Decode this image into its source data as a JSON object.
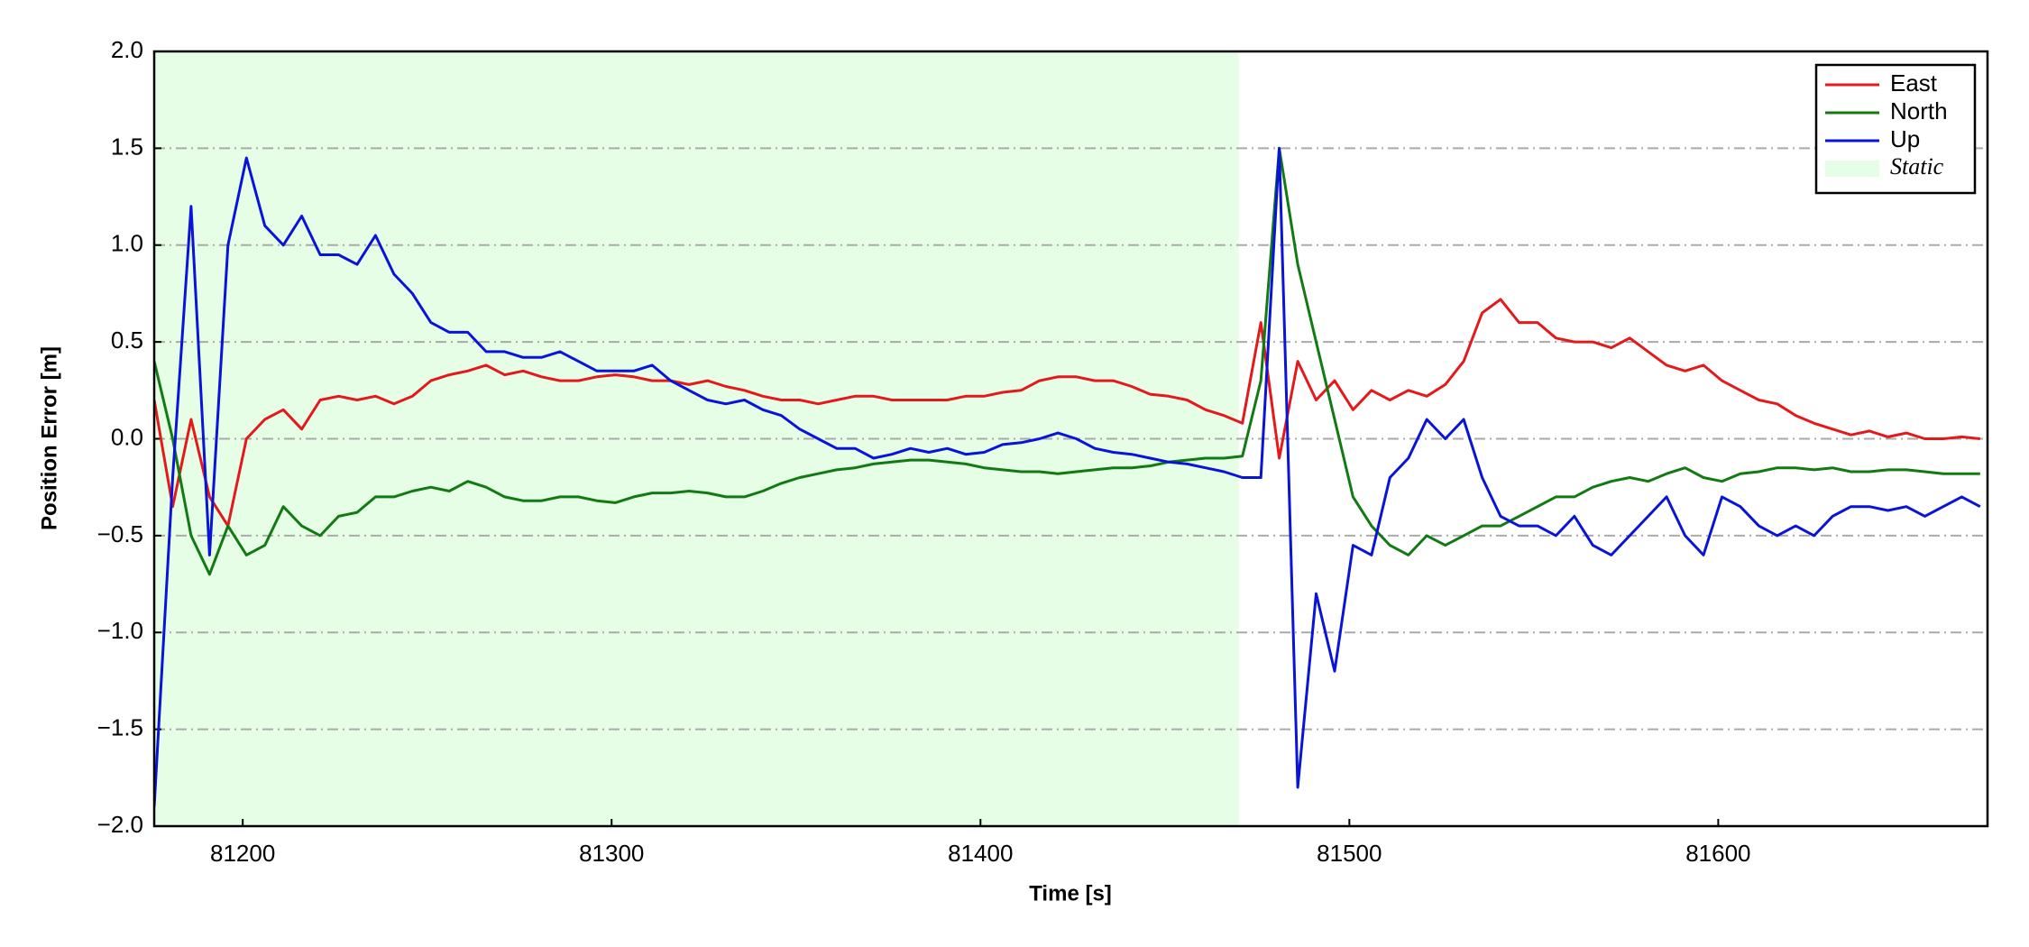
{
  "chart_data": {
    "type": "line",
    "x_label": "Time [s]",
    "y_label": "Position Error [m]",
    "xlim": [
      81176,
      81673
    ],
    "ylim": [
      -2,
      2
    ],
    "xticks": [
      81200,
      81300,
      81400,
      81500,
      81600
    ],
    "yticks": [
      {
        "value": -2,
        "label": "−2.0"
      },
      {
        "value": -1.5,
        "label": "−1.5"
      },
      {
        "value": -1,
        "label": "−1.0"
      },
      {
        "value": -0.5,
        "label": "−0.5"
      },
      {
        "value": 0,
        "label": "0.0"
      },
      {
        "value": 0.5,
        "label": "0.5"
      },
      {
        "value": 1,
        "label": "1.0"
      },
      {
        "value": 1.5,
        "label": "1.5"
      },
      {
        "value": 2,
        "label": "2.0"
      }
    ],
    "grid": true,
    "legend": "upper right",
    "shade": {
      "name": "Static",
      "color": "#e6fde6",
      "x": [
        81176,
        81470
      ]
    },
    "x": [
      81176,
      81181,
      81186,
      81191,
      81196,
      81201,
      81206,
      81211,
      81216,
      81221,
      81226,
      81231,
      81236,
      81241,
      81246,
      81251,
      81256,
      81261,
      81266,
      81271,
      81276,
      81281,
      81286,
      81291,
      81296,
      81301,
      81306,
      81311,
      81316,
      81321,
      81326,
      81331,
      81336,
      81341,
      81346,
      81351,
      81356,
      81361,
      81366,
      81371,
      81376,
      81381,
      81386,
      81391,
      81396,
      81401,
      81406,
      81411,
      81416,
      81421,
      81426,
      81431,
      81436,
      81441,
      81446,
      81451,
      81456,
      81461,
      81466,
      81471,
      81476,
      81481,
      81486,
      81491,
      81496,
      81501,
      81506,
      81511,
      81516,
      81521,
      81526,
      81531,
      81536,
      81541,
      81546,
      81551,
      81556,
      81561,
      81566,
      81571,
      81576,
      81581,
      81586,
      81591,
      81596,
      81601,
      81606,
      81611,
      81616,
      81621,
      81626,
      81631,
      81636,
      81641,
      81646,
      81651,
      81656,
      81661,
      81666,
      81671
    ],
    "series": [
      {
        "name": "East",
        "color": "#e31a1c",
        "values": [
          0.2,
          -0.35,
          0.1,
          -0.3,
          -0.45,
          0.0,
          0.1,
          0.15,
          0.05,
          0.2,
          0.22,
          0.2,
          0.22,
          0.18,
          0.22,
          0.3,
          0.33,
          0.35,
          0.38,
          0.33,
          0.35,
          0.32,
          0.3,
          0.3,
          0.32,
          0.33,
          0.32,
          0.3,
          0.3,
          0.28,
          0.3,
          0.27,
          0.25,
          0.22,
          0.2,
          0.2,
          0.18,
          0.2,
          0.22,
          0.22,
          0.2,
          0.2,
          0.2,
          0.2,
          0.22,
          0.22,
          0.24,
          0.25,
          0.3,
          0.32,
          0.32,
          0.3,
          0.3,
          0.27,
          0.23,
          0.22,
          0.2,
          0.15,
          0.12,
          0.08,
          0.6,
          -0.1,
          0.4,
          0.2,
          0.3,
          0.15,
          0.25,
          0.2,
          0.25,
          0.22,
          0.28,
          0.4,
          0.65,
          0.72,
          0.6,
          0.6,
          0.52,
          0.5,
          0.5,
          0.47,
          0.52,
          0.45,
          0.38,
          0.35,
          0.38,
          0.3,
          0.25,
          0.2,
          0.18,
          0.12,
          0.08,
          0.05,
          0.02,
          0.04,
          0.01,
          0.03,
          0.0,
          0.0,
          0.01,
          0.0
        ]
      },
      {
        "name": "North",
        "color": "#127a12",
        "values": [
          0.4,
          0.0,
          -0.5,
          -0.7,
          -0.45,
          -0.6,
          -0.55,
          -0.35,
          -0.45,
          -0.5,
          -0.4,
          -0.38,
          -0.3,
          -0.3,
          -0.27,
          -0.25,
          -0.27,
          -0.22,
          -0.25,
          -0.3,
          -0.32,
          -0.32,
          -0.3,
          -0.3,
          -0.32,
          -0.33,
          -0.3,
          -0.28,
          -0.28,
          -0.27,
          -0.28,
          -0.3,
          -0.3,
          -0.27,
          -0.23,
          -0.2,
          -0.18,
          -0.16,
          -0.15,
          -0.13,
          -0.12,
          -0.11,
          -0.11,
          -0.12,
          -0.13,
          -0.15,
          -0.16,
          -0.17,
          -0.17,
          -0.18,
          -0.17,
          -0.16,
          -0.15,
          -0.15,
          -0.14,
          -0.12,
          -0.11,
          -0.1,
          -0.1,
          -0.09,
          0.3,
          1.5,
          0.9,
          0.5,
          0.1,
          -0.3,
          -0.45,
          -0.55,
          -0.6,
          -0.5,
          -0.55,
          -0.5,
          -0.45,
          -0.45,
          -0.4,
          -0.35,
          -0.3,
          -0.3,
          -0.25,
          -0.22,
          -0.2,
          -0.22,
          -0.18,
          -0.15,
          -0.2,
          -0.22,
          -0.18,
          -0.17,
          -0.15,
          -0.15,
          -0.16,
          -0.15,
          -0.17,
          -0.17,
          -0.16,
          -0.16,
          -0.17,
          -0.18,
          -0.18,
          -0.18
        ]
      },
      {
        "name": "Up",
        "color": "#0a14d8",
        "values": [
          -1.9,
          -0.2,
          1.2,
          -0.6,
          1.0,
          1.45,
          1.1,
          1.0,
          1.15,
          0.95,
          0.95,
          0.9,
          1.05,
          0.85,
          0.75,
          0.6,
          0.55,
          0.55,
          0.45,
          0.45,
          0.42,
          0.42,
          0.45,
          0.4,
          0.35,
          0.35,
          0.35,
          0.38,
          0.3,
          0.25,
          0.2,
          0.18,
          0.2,
          0.15,
          0.12,
          0.05,
          0.0,
          -0.05,
          -0.05,
          -0.1,
          -0.08,
          -0.05,
          -0.07,
          -0.05,
          -0.08,
          -0.07,
          -0.03,
          -0.02,
          0.0,
          0.03,
          0.0,
          -0.05,
          -0.07,
          -0.08,
          -0.1,
          -0.12,
          -0.13,
          -0.15,
          -0.17,
          -0.2,
          -0.2,
          1.5,
          -1.8,
          -0.8,
          -1.2,
          -0.55,
          -0.6,
          -0.2,
          -0.1,
          0.1,
          0.0,
          0.1,
          -0.2,
          -0.4,
          -0.45,
          -0.45,
          -0.5,
          -0.4,
          -0.55,
          -0.6,
          -0.5,
          -0.4,
          -0.3,
          -0.5,
          -0.6,
          -0.3,
          -0.35,
          -0.45,
          -0.5,
          -0.45,
          -0.5,
          -0.4,
          -0.35,
          -0.35,
          -0.37,
          -0.35,
          -0.4,
          -0.35,
          -0.3,
          -0.35
        ]
      }
    ]
  }
}
